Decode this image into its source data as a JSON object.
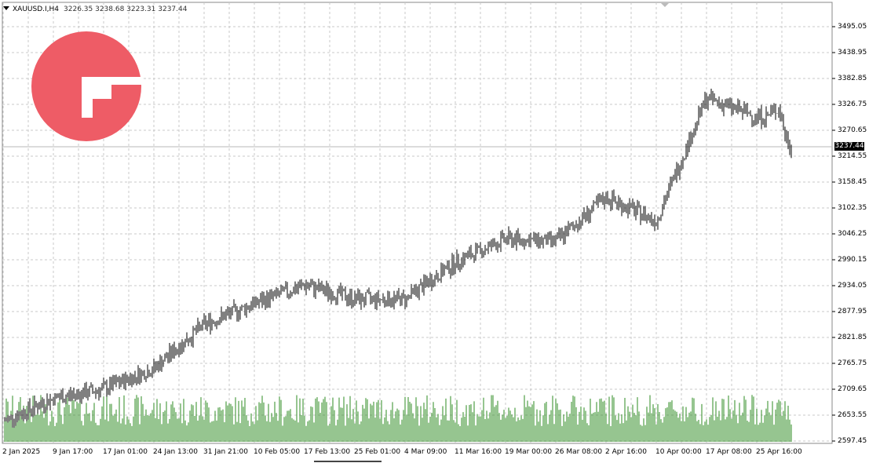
{
  "header": {
    "symbol": "XAUUSD.I,H4",
    "ohlc": "3226.35 3238.68 3223.31 3237.44"
  },
  "current_price": "3237.44",
  "colors": {
    "bars": "#000000",
    "volume": "#2e8b22",
    "grid": "#c8c8c8",
    "logo": "#ee5c66"
  },
  "icons": {
    "logo": "fx-logo-icon",
    "menu": "dropdown-triangle-icon"
  },
  "chart_data": {
    "type": "ohlc",
    "symbol": "XAUUSD.I",
    "timeframe": "H4",
    "y_ticks": [
      "3495.05",
      "3438.95",
      "3382.85",
      "3326.75",
      "3270.65",
      "3214.55",
      "3158.45",
      "3102.35",
      "3046.25",
      "2990.15",
      "2934.05",
      "2877.95",
      "2821.85",
      "2765.75",
      "2709.65",
      "2653.55",
      "2597.45"
    ],
    "x_ticks": [
      "2 Jan 2025",
      "9 Jan 17:00",
      "17 Jan 01:00",
      "24 Jan 13:00",
      "31 Jan 21:00",
      "10 Feb 05:00",
      "17 Feb 13:00",
      "25 Feb 01:00",
      "4 Mar 09:00",
      "11 Mar 16:00",
      "19 Mar 00:00",
      "26 Mar 08:00",
      "2 Apr 16:00",
      "10 Apr 00:00",
      "17 Apr 08:00",
      "25 Apr 16:00"
    ],
    "ylim": [
      2597.45,
      3495.05
    ],
    "grid": true,
    "price_path": [
      [
        "2 Jan 2025",
        2640
      ],
      [
        "9 Jan 17:00",
        2690
      ],
      [
        "17 Jan 01:00",
        2710
      ],
      [
        "24 Jan 13:00",
        2755
      ],
      [
        "31 Jan 21:00",
        2850
      ],
      [
        "10 Feb 05:00",
        2895
      ],
      [
        "17 Feb 13:00",
        2935
      ],
      [
        "25 Feb 01:00",
        2905
      ],
      [
        "4 Mar 09:00",
        2905
      ],
      [
        "11 Mar 16:00",
        2985
      ],
      [
        "19 Mar 00:00",
        3035
      ],
      [
        "26 Mar 08:00",
        3030
      ],
      [
        "2 Apr 16:00",
        3125
      ],
      [
        "10 Apr 00:00",
        3075
      ],
      [
        "17 Apr 08:00",
        3340
      ],
      [
        "25 Apr 16:00",
        3300
      ]
    ],
    "volume_series": "tick volume (green histogram)"
  }
}
